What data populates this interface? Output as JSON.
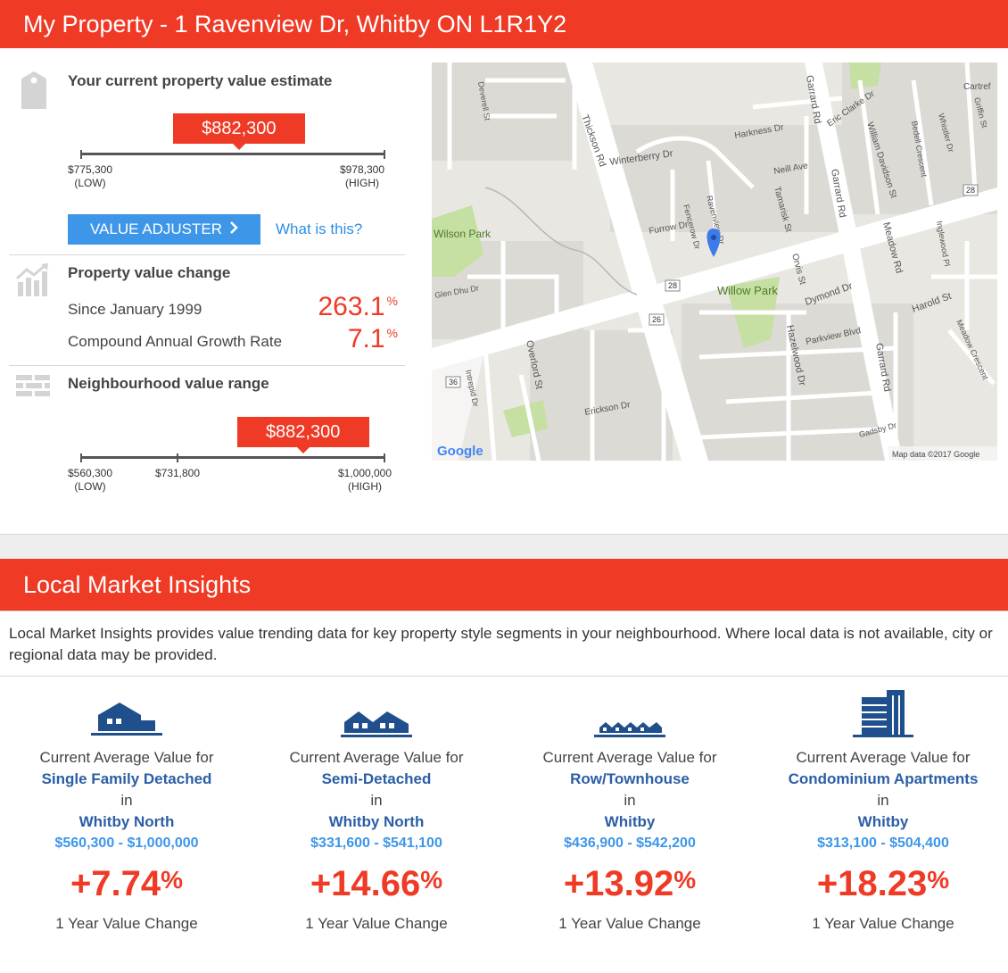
{
  "header": {
    "title": "My Property - 1 Ravenview Dr, Whitby ON L1R1Y2"
  },
  "estimate": {
    "heading": "Your current property value estimate",
    "value": "$882,300",
    "low_value": "$775,300",
    "low_label": "(LOW)",
    "high_value": "$978,300",
    "high_label": "(HIGH)",
    "position": 0.52,
    "adjuster_label": "VALUE ADJUSTER",
    "what_link": "What is this?"
  },
  "value_change": {
    "heading": "Property value change",
    "since_label": "Since January 1999",
    "since_value": "263.1",
    "cagr_label": "Compound Annual Growth Rate",
    "cagr_value": "7.1",
    "percent": "%"
  },
  "neighbourhood": {
    "heading": "Neighbourhood value range",
    "value": "$882,300",
    "low_value": "$560,300",
    "low_label": "(LOW)",
    "mid_value": "$731,800",
    "high_value": "$1,000,000",
    "high_label": "(HIGH)",
    "position": 0.73
  },
  "map": {
    "google_label": "Google",
    "attribution": "Map data ©2017 Google",
    "labels": {
      "thickson": "Thickson Rd",
      "winterberry": "Winterberry Dr",
      "garrard": "Garrard Rd",
      "willow_park": "Willow Park",
      "wilson_park": "Wilson Park",
      "dymond": "Dymond Dr",
      "harold": "Harold St",
      "meadow_rd": "Meadow Rd",
      "parkview": "Parkview Blvd",
      "hazelwood": "Hazelwood Dr",
      "erickson": "Erickson Dr",
      "overlord": "Overlord St",
      "orvis": "Orvis St",
      "tamarisk": "Tamarisk St",
      "neill": "Neill Ave",
      "harkness": "Harkness Dr",
      "furrow": "Furrow Dr",
      "william_davidson": "William Davidson St",
      "eric_clarke": "Eric Clarke Dr",
      "bedell": "Bedell Crescent",
      "inglewood": "Inglewood Pl",
      "meadow_crescent": "Meadow Crescent",
      "gadsby": "Gadsby Dr",
      "intrepid": "Intrepid Dr",
      "deverell": "Deverell St",
      "glen_dhu": "Glen Dhu Dr",
      "ravenview": "Ravenview Dr",
      "fencerow": "Fencerow Dr",
      "whistler": "Whistler Dr",
      "griffin": "Griffin St",
      "cartref": "Cartref",
      "shield_28": "28",
      "shield_26": "26",
      "shield_36": "36"
    }
  },
  "insights": {
    "title": "Local Market Insights",
    "intro": "Local Market Insights provides value trending data for key property style segments in your neighbourhood. Where local data is not available, city or regional data may be provided.",
    "cards": [
      {
        "line1": "Current Average Value for",
        "segment": "Single Family Detached",
        "in": "in",
        "location": "Whitby North",
        "range": "$560,300 - $1,000,000",
        "change": "+7.74",
        "pct": "%",
        "change_label": "1 Year Value Change",
        "icon": "house-icon"
      },
      {
        "line1": "Current Average Value for",
        "segment": "Semi-Detached",
        "in": "in",
        "location": "Whitby North",
        "range": "$331,600 - $541,100",
        "change": "+14.66",
        "pct": "%",
        "change_label": "1 Year Value Change",
        "icon": "semi-detached-icon"
      },
      {
        "line1": "Current Average Value for",
        "segment": "Row/Townhouse",
        "in": "in",
        "location": "Whitby",
        "range": "$436,900 - $542,200",
        "change": "+13.92",
        "pct": "%",
        "change_label": "1 Year Value Change",
        "icon": "townhouse-icon"
      },
      {
        "line1": "Current Average Value for",
        "segment": "Condominium Apartments",
        "in": "in",
        "location": "Whitby",
        "range": "$313,100 - $504,400",
        "change": "+18.23",
        "pct": "%",
        "change_label": "1 Year Value Change",
        "icon": "condo-icon"
      }
    ]
  },
  "colors": {
    "brand_red": "#ef3a25",
    "accent_blue": "#3d96e8",
    "segment_blue": "#2b5ea6"
  }
}
